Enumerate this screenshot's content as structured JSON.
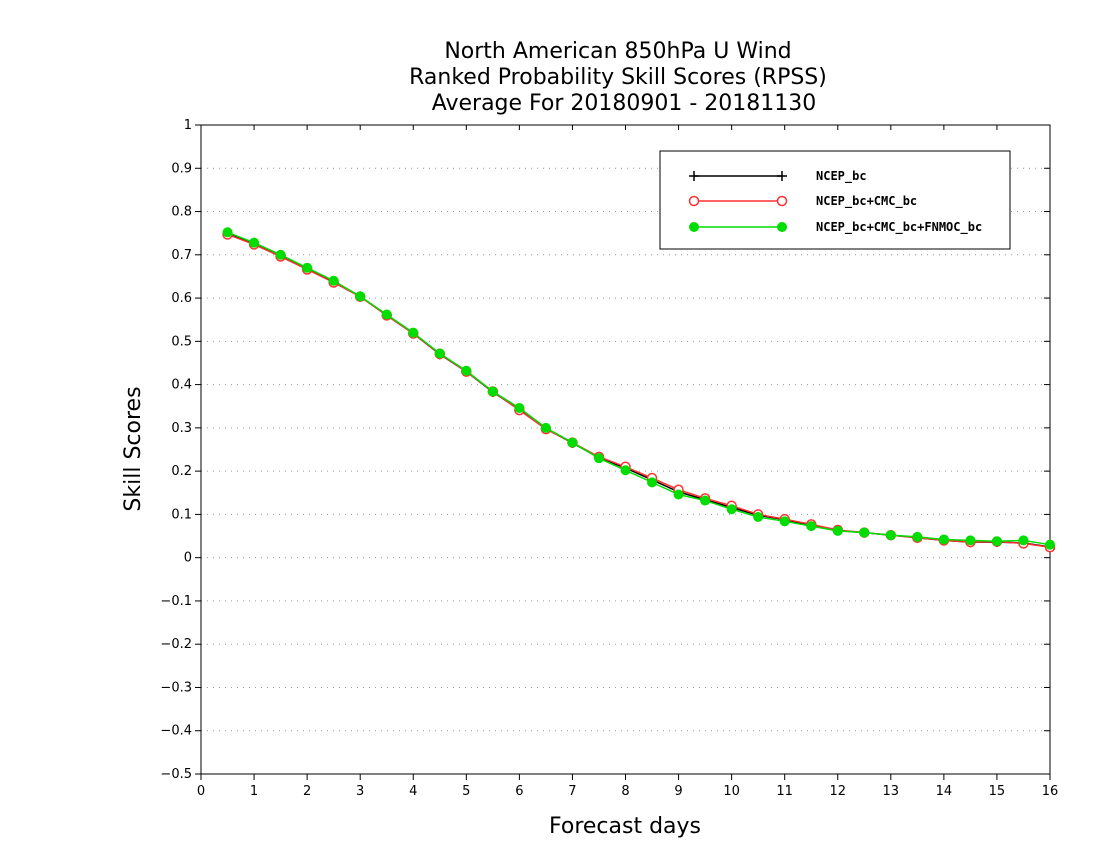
{
  "chart_data": {
    "type": "line",
    "title": [
      "North American 850hPa U Wind",
      "Ranked Probability Skill Scores (RPSS)",
      "Average For 20180901 - 20181130"
    ],
    "xlabel": "Forecast days",
    "ylabel": "Skill Scores",
    "xlim": [
      0,
      16
    ],
    "ylim": [
      -0.5,
      1
    ],
    "xticks": [
      "0",
      "1",
      "2",
      "3",
      "4",
      "5",
      "6",
      "7",
      "8",
      "9",
      "10",
      "11",
      "12",
      "13",
      "14",
      "15",
      "16"
    ],
    "yticks": [
      "−0.5",
      "−0.4",
      "−0.3",
      "−0.2",
      "−0.1",
      "0",
      "0.1",
      "0.2",
      "0.3",
      "0.4",
      "0.5",
      "0.6",
      "0.7",
      "0.8",
      "0.9",
      "1"
    ],
    "grid": "horizontal-dotted",
    "legend_position": "top-right",
    "x": [
      0.5,
      1,
      1.5,
      2,
      2.5,
      3,
      3.5,
      4,
      4.5,
      5,
      5.5,
      6,
      6.5,
      7,
      7.5,
      8,
      8.5,
      9,
      9.5,
      10,
      10.5,
      11,
      11.5,
      12,
      12.5,
      13,
      13.5,
      14,
      14.5,
      15,
      15.5,
      16
    ],
    "series": [
      {
        "name": "NCEP_bc",
        "color": "#000000",
        "marker": "plus",
        "values": [
          0.75,
          0.726,
          0.698,
          0.668,
          0.638,
          0.604,
          0.56,
          0.518,
          0.47,
          0.43,
          0.383,
          0.342,
          0.298,
          0.265,
          0.231,
          0.207,
          0.18,
          0.152,
          0.134,
          0.116,
          0.098,
          0.088,
          0.075,
          0.063,
          0.058,
          0.052,
          0.046,
          0.04,
          0.036,
          0.036,
          0.034,
          0.025
        ]
      },
      {
        "name": "NCEP_bc+CMC_bc",
        "color": "#ff3030",
        "marker": "open-circle",
        "values": [
          0.747,
          0.724,
          0.696,
          0.666,
          0.636,
          0.603,
          0.56,
          0.518,
          0.471,
          0.43,
          0.384,
          0.341,
          0.297,
          0.266,
          0.233,
          0.21,
          0.184,
          0.157,
          0.137,
          0.12,
          0.1,
          0.089,
          0.077,
          0.064,
          0.058,
          0.052,
          0.046,
          0.04,
          0.036,
          0.037,
          0.033,
          0.024
        ]
      },
      {
        "name": "NCEP_bc+CMC_bc+FNMOC_bc",
        "color": "#00dd00",
        "marker": "filled-circle",
        "values": [
          0.752,
          0.728,
          0.7,
          0.67,
          0.64,
          0.604,
          0.562,
          0.52,
          0.472,
          0.432,
          0.384,
          0.346,
          0.3,
          0.266,
          0.23,
          0.202,
          0.174,
          0.146,
          0.132,
          0.112,
          0.094,
          0.084,
          0.073,
          0.062,
          0.058,
          0.052,
          0.048,
          0.042,
          0.04,
          0.038,
          0.04,
          0.03
        ]
      }
    ]
  }
}
